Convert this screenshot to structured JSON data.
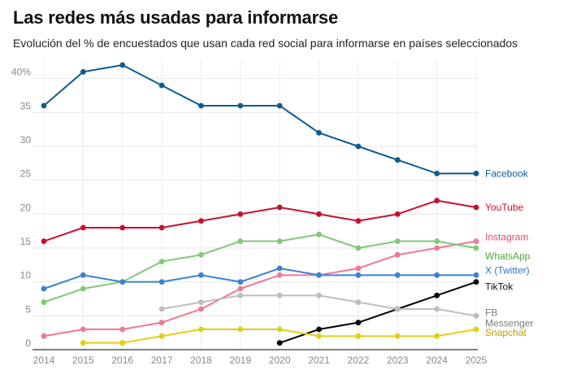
{
  "chart_data": {
    "type": "line",
    "title": "Las redes más usadas para informarse",
    "subtitle": "Evolución del % de encuestados que usan cada red social para informarse en países seleccionados",
    "x": [
      2014,
      2015,
      2016,
      2017,
      2018,
      2019,
      2020,
      2021,
      2022,
      2023,
      2024,
      2025
    ],
    "ylim": [
      0,
      42
    ],
    "yticks": [
      0,
      5,
      10,
      15,
      20,
      25,
      30,
      35,
      40
    ],
    "ytick_labels": [
      "0",
      "5",
      "10",
      "15",
      "20",
      "25",
      "30",
      "35",
      "40%"
    ],
    "grid": true,
    "series": [
      {
        "name": "Facebook",
        "color": "#0d5a96",
        "values": [
          36,
          41,
          42,
          39,
          36,
          36,
          36,
          32,
          30,
          28,
          26,
          26
        ]
      },
      {
        "name": "YouTube",
        "color": "#c8102e",
        "values": [
          16,
          18,
          18,
          18,
          19,
          20,
          21,
          20,
          19,
          20,
          22,
          21
        ]
      },
      {
        "name": "Instagram",
        "color": "#f07891",
        "values": [
          2,
          3,
          3,
          4,
          6,
          9,
          11,
          11,
          12,
          14,
          15,
          16
        ]
      },
      {
        "name": "WhatsApp",
        "color": "#82c878",
        "values": [
          7,
          9,
          10,
          13,
          14,
          16,
          16,
          17,
          15,
          16,
          16,
          15
        ]
      },
      {
        "name": "X (Twitter)",
        "color": "#3c82d2",
        "values": [
          9,
          11,
          10,
          10,
          11,
          10,
          12,
          11,
          11,
          11,
          11,
          11
        ]
      },
      {
        "name": "TikTok",
        "color": "#000000",
        "values": [
          null,
          null,
          null,
          null,
          null,
          null,
          1,
          3,
          4,
          6,
          8,
          10
        ]
      },
      {
        "name": "FB Messenger",
        "color": "#bebebe",
        "values": [
          null,
          null,
          null,
          6,
          7,
          8,
          8,
          8,
          7,
          6,
          6,
          5
        ]
      },
      {
        "name": "Snapchat",
        "color": "#e6cd14",
        "values": [
          null,
          1,
          1,
          2,
          3,
          3,
          3,
          2,
          2,
          2,
          2,
          3
        ]
      }
    ]
  },
  "label_colors": {
    "Facebook": "#0d5a96",
    "YouTube": "#c8102e",
    "Instagram": "#e8476f",
    "WhatsApp": "#4ca83e",
    "X (Twitter)": "#2f74c4",
    "TikTok": "#111111",
    "FB Messenger": "#7a7a7a",
    "Snapchat": "#b8a000"
  },
  "end_labels": [
    {
      "series": "Facebook",
      "lines": [
        "Facebook"
      ]
    },
    {
      "series": "YouTube",
      "lines": [
        "YouTube"
      ]
    },
    {
      "series": "Instagram",
      "lines": [
        "Instagram"
      ]
    },
    {
      "series": "WhatsApp",
      "lines": [
        "WhatsApp"
      ]
    },
    {
      "series": "X (Twitter)",
      "lines": [
        "X (Twitter)"
      ]
    },
    {
      "series": "TikTok",
      "lines": [
        "TikTok"
      ]
    },
    {
      "series": "FB Messenger",
      "lines": [
        "FB",
        "Messenger"
      ]
    },
    {
      "series": "Snapchat",
      "lines": [
        "Snapchat"
      ]
    }
  ]
}
